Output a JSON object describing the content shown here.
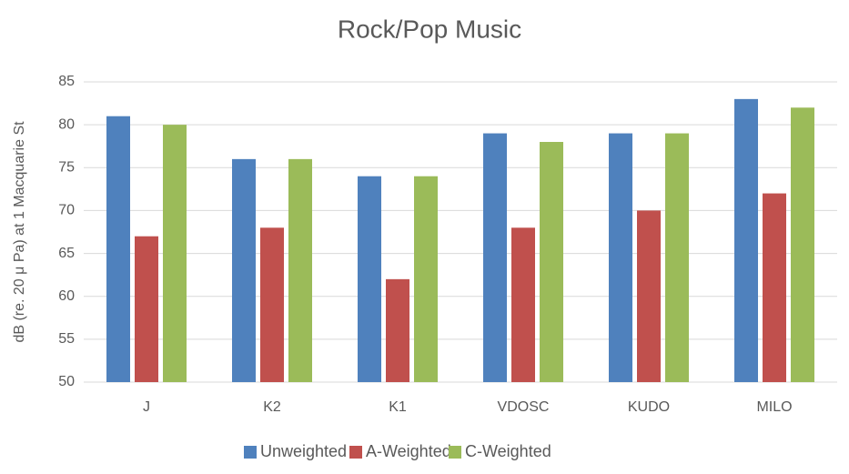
{
  "chart_data": {
    "type": "bar",
    "title": "Rock/Pop Music",
    "y_label": "dB (re. 20 μ Pa) at 1 Macquarie St",
    "categories": [
      "J",
      "K2",
      "K1",
      "VDOSC",
      "KUDO",
      "MILO"
    ],
    "series": [
      {
        "name": "Unweighted",
        "color": "#4f81bd",
        "values": [
          81,
          76,
          74,
          79,
          79,
          83
        ]
      },
      {
        "name": "A-Weighted",
        "color": "#c0504d",
        "values": [
          67,
          68,
          62,
          68,
          70,
          72
        ]
      },
      {
        "name": "C-Weighted",
        "color": "#9bbb59",
        "values": [
          80,
          76,
          74,
          78,
          79,
          82
        ]
      }
    ],
    "ylim": [
      50,
      85
    ],
    "yticks": [
      50,
      55,
      60,
      65,
      70,
      75,
      80,
      85
    ],
    "grid": true,
    "legend": "bottom"
  }
}
